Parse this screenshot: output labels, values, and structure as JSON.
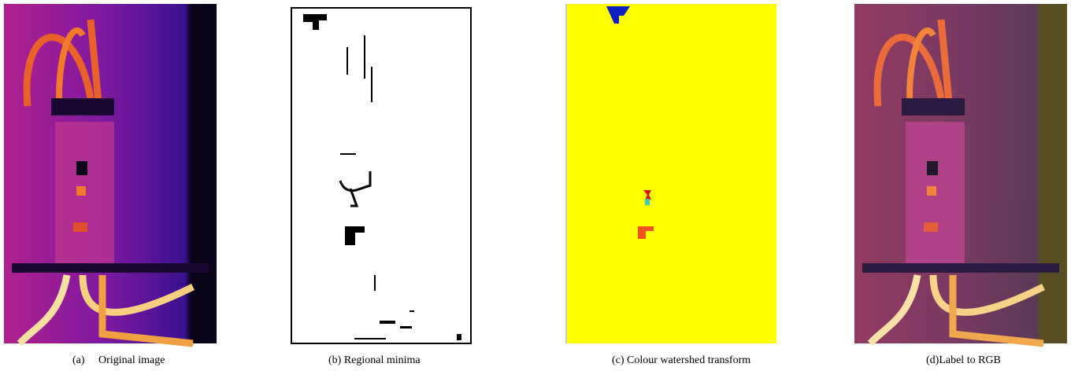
{
  "figures": [
    {
      "label": "(a)",
      "caption": "Original image"
    },
    {
      "label": "(b)",
      "caption": "Regional minima"
    },
    {
      "label": "(c)",
      "caption": "Colour watershed transform"
    },
    {
      "label": "(d)",
      "caption": "Label to RGB"
    }
  ]
}
